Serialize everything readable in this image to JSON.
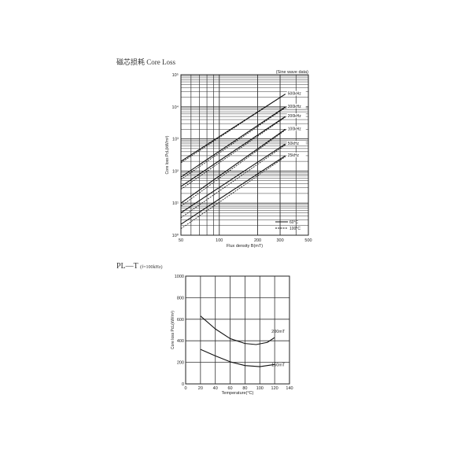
{
  "heading1": "磁芯损耗 Core Loss",
  "heading2": "PL—T",
  "heading2_note": "(f=100kHz)",
  "chart_data": [
    {
      "type": "line",
      "xscale": "log",
      "yscale": "log",
      "xlim": [
        50,
        500
      ],
      "ylim": [
        1,
        100000
      ],
      "xlabel": "Flux density B(mT)",
      "ylabel": "Core loss PcL(kW/m³)",
      "annotation": "(Sine wave data)",
      "xticks": [
        "50",
        "100",
        "200",
        "300",
        "500"
      ],
      "xtick_values": [
        50,
        100,
        200,
        300,
        500
      ],
      "yticks": [
        "10⁰",
        "10¹",
        "10²",
        "10³",
        "10⁴",
        "10⁵"
      ],
      "grid": true,
      "legend": {
        "placement": "bottom-right",
        "entries": [
          {
            "label": "60°C",
            "style": "solid"
          },
          {
            "label": "100°C",
            "style": "dashed"
          }
        ]
      },
      "series": [
        {
          "name": "500kHz",
          "solid": [
            [
              50,
              200
            ],
            [
              330,
              25000
            ]
          ],
          "dashed": [
            [
              50,
              180
            ],
            [
              330,
              25000
            ]
          ]
        },
        {
          "name": "300kHz",
          "solid": [
            [
              50,
              65
            ],
            [
              330,
              10000
            ]
          ],
          "dashed": [
            [
              50,
              55
            ],
            [
              330,
              9500
            ]
          ]
        },
        {
          "name": "200kHz",
          "solid": [
            [
              50,
              33
            ],
            [
              330,
              5000
            ]
          ],
          "dashed": [
            [
              50,
              27
            ],
            [
              330,
              4800
            ]
          ]
        },
        {
          "name": "100kHz",
          "solid": [
            [
              50,
              10
            ],
            [
              330,
              2000
            ]
          ],
          "dashed": [
            [
              50,
              8
            ],
            [
              330,
              1900
            ]
          ]
        },
        {
          "name": "50kHz",
          "solid": [
            [
              50,
              5
            ],
            [
              330,
              700
            ]
          ],
          "dashed": [
            [
              50,
              3.5
            ],
            [
              330,
              650
            ]
          ]
        },
        {
          "name": "25kHz",
          "solid": [
            [
              50,
              2.2
            ],
            [
              330,
              300
            ]
          ],
          "dashed": [
            [
              50,
              1.6
            ],
            [
              330,
              280
            ]
          ]
        }
      ]
    },
    {
      "type": "line",
      "xlim": [
        0,
        140
      ],
      "ylim": [
        0,
        1000
      ],
      "xlabel": "Temperature(°C)",
      "ylabel": "Core loss PcL(kW/m³)",
      "xticks": [
        0,
        20,
        40,
        60,
        80,
        100,
        120,
        140
      ],
      "yticks": [
        0,
        200,
        400,
        600,
        800,
        1000
      ],
      "grid": true,
      "series": [
        {
          "name": "200mT",
          "points": [
            [
              20,
              630
            ],
            [
              40,
              510
            ],
            [
              60,
              420
            ],
            [
              80,
              375
            ],
            [
              95,
              365
            ],
            [
              110,
              385
            ],
            [
              120,
              430
            ]
          ]
        },
        {
          "name": "150mT",
          "points": [
            [
              20,
              320
            ],
            [
              40,
              260
            ],
            [
              60,
              205
            ],
            [
              80,
              170
            ],
            [
              100,
              160
            ],
            [
              120,
              180
            ]
          ]
        }
      ]
    }
  ]
}
